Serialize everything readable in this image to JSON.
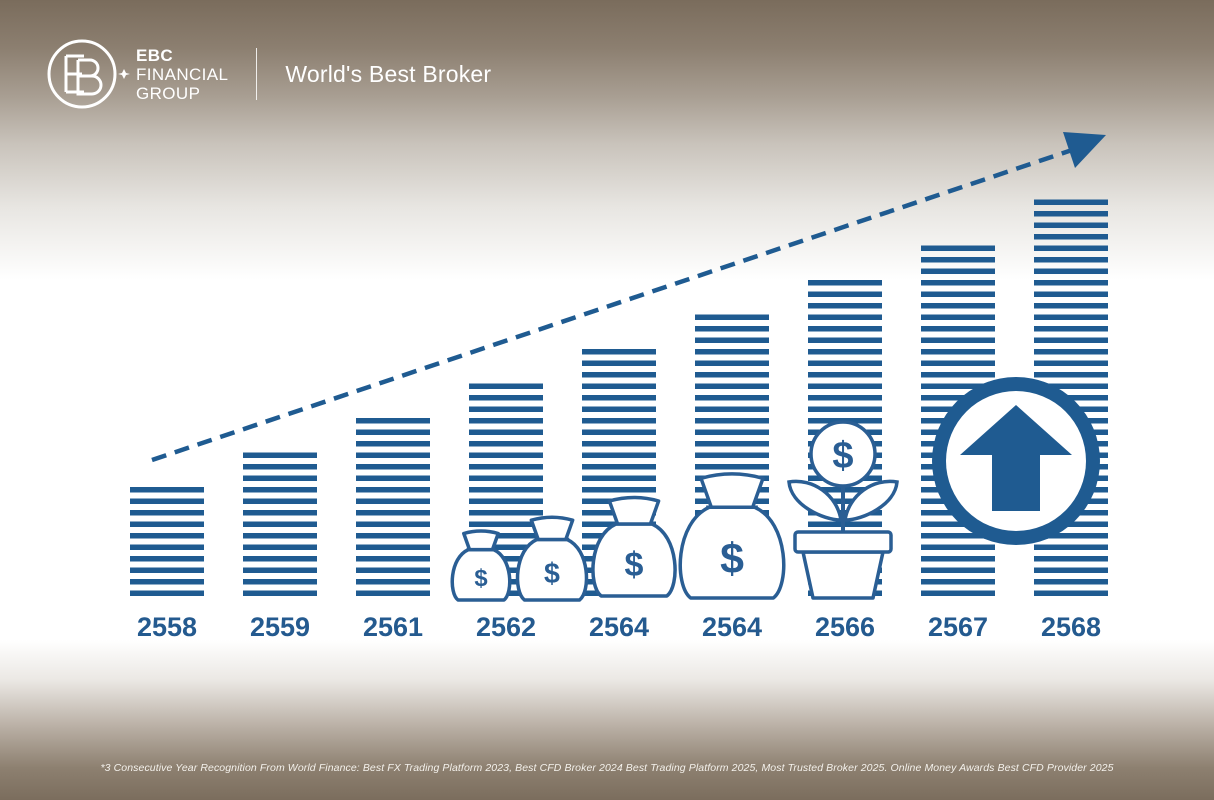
{
  "header": {
    "brand_line1": "EBC",
    "brand_line2": "FINANCIAL",
    "brand_line3": "GROUP",
    "tagline": "World's Best Broker"
  },
  "colors": {
    "bar": "#1f5b91",
    "text": "#245a8f",
    "icon_stroke": "#2a5e94",
    "icon_fill": "#ffffff"
  },
  "chart_data": {
    "type": "bar",
    "categories": [
      "2558",
      "2559",
      "2561",
      "2562",
      "2564",
      "2564",
      "2566",
      "2567",
      "2568"
    ],
    "values": [
      3.4,
      4.4,
      5.4,
      6.4,
      7.4,
      8.4,
      9.4,
      10.4,
      11.7
    ],
    "ylim": [
      0,
      12
    ],
    "grid": false,
    "bar_style": "horizontal-stripes",
    "trend_arrow": "dashed-upward",
    "overlay_icons": [
      "money-bag-icon",
      "money-bag-icon",
      "money-bag-icon",
      "money-bag-icon",
      "money-plant-icon",
      "up-arrow-circle-icon"
    ]
  },
  "footnote": "*3 Consecutive Year Recognition From World Finance: Best FX Trading Platform 2023, Best CFD Broker 2024 Best Trading Platform 2025, Most Trusted Broker 2025.  Online Money Awards Best CFD Provider 2025"
}
